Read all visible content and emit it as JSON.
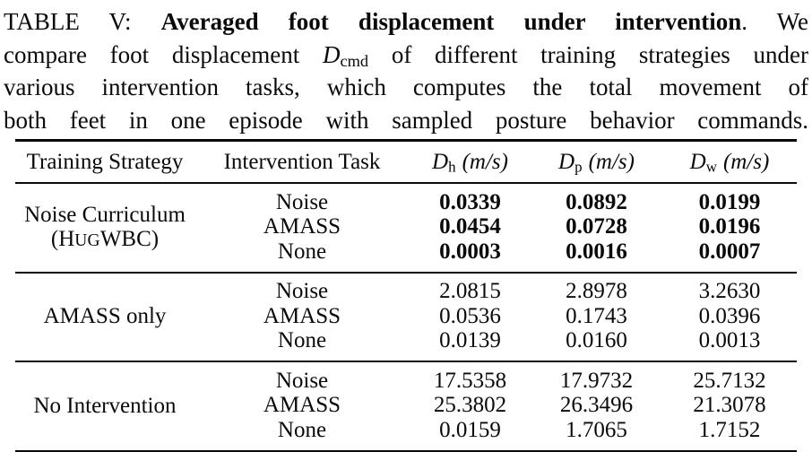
{
  "caption": {
    "l1pre": "TABLE V: ",
    "l1bold": "Averaged foot displacement under intervention",
    "l1post": ". We",
    "l2pre": "compare foot displacement ",
    "l2var": "D",
    "l2sub": "cmd",
    "l2post": " of different training strategies under",
    "l3": "various intervention tasks, which computes the total movement of",
    "l4": "both feet in one episode with sampled posture behavior commands."
  },
  "table": {
    "headers": {
      "strategy": "Training Strategy",
      "task": "Intervention Task",
      "metrics": [
        {
          "var": "D",
          "sub": "h",
          "unit": "(m/s)"
        },
        {
          "var": "D",
          "sub": "p",
          "unit": "(m/s)"
        },
        {
          "var": "D",
          "sub": "w",
          "unit": "(m/s)"
        }
      ]
    },
    "groups": [
      {
        "strategy_line1": "Noise Curriculum",
        "strategy_line2_pre": "(H",
        "strategy_line2_smallcaps": "UG",
        "strategy_line2_post": "WBC)",
        "bold_values": true,
        "rows": [
          {
            "task": "Noise",
            "values": [
              "0.0339",
              "0.0892",
              "0.0199"
            ]
          },
          {
            "task": "AMASS",
            "values": [
              "0.0454",
              "0.0728",
              "0.0196"
            ]
          },
          {
            "task": "None",
            "values": [
              "0.0003",
              "0.0016",
              "0.0007"
            ]
          }
        ]
      },
      {
        "strategy_line1": "AMASS only",
        "bold_values": false,
        "rows": [
          {
            "task": "Noise",
            "values": [
              "2.0815",
              "2.8978",
              "3.2630"
            ]
          },
          {
            "task": "AMASS",
            "values": [
              "0.0536",
              "0.1743",
              "0.0396"
            ]
          },
          {
            "task": "None",
            "values": [
              "0.0139",
              "0.0160",
              "0.0013"
            ]
          }
        ]
      },
      {
        "strategy_line1": "No Intervention",
        "bold_values": false,
        "rows": [
          {
            "task": "Noise",
            "values": [
              "17.5358",
              "17.9732",
              "25.7132"
            ]
          },
          {
            "task": "AMASS",
            "values": [
              "25.3802",
              "26.3496",
              "21.3078"
            ]
          },
          {
            "task": "None",
            "values": [
              "0.0159",
              "1.7065",
              "1.7152"
            ]
          }
        ]
      }
    ]
  },
  "colors": {
    "text": "#0a0a0a",
    "background": "#ffffff"
  }
}
